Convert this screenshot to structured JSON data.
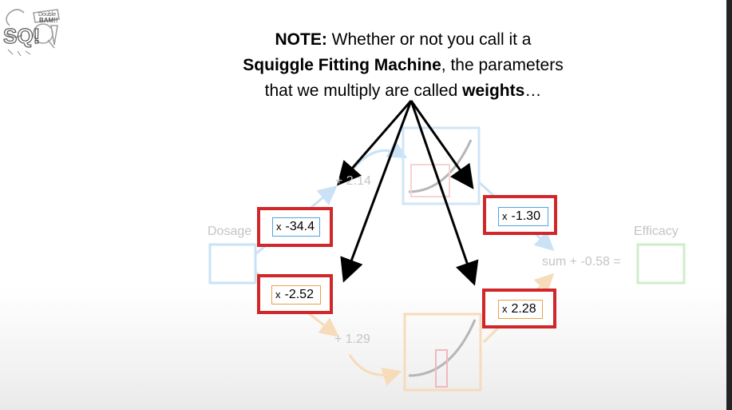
{
  "note": {
    "lead": "NOTE:",
    "part1": " Whether or not you call it a",
    "bold1": "Squiggle Fitting Machine",
    "part2": ", the parameters",
    "part3": "that we multiply are called ",
    "bold2": "weights",
    "end": "…"
  },
  "logo": {
    "top": "Double",
    "middle": "BAM!!",
    "letters": "SQ!"
  },
  "diagram": {
    "input_label": "Dosage",
    "output_label": "Efficacy",
    "bias_top": "+ 2.14",
    "bias_bottom": "+ 1.29",
    "sum_label": "sum + -0.58 ="
  },
  "weights": [
    {
      "symbol": "x",
      "value": "-34.4"
    },
    {
      "symbol": "x",
      "value": "-2.52"
    },
    {
      "symbol": "x",
      "value": "-1.30"
    },
    {
      "symbol": "x",
      "value": "2.28"
    }
  ],
  "colors": {
    "highlight_red": "#d0272a",
    "blue_path": "#4fa3e0",
    "orange_path": "#e8a24a",
    "green_output": "#8fd18a"
  }
}
